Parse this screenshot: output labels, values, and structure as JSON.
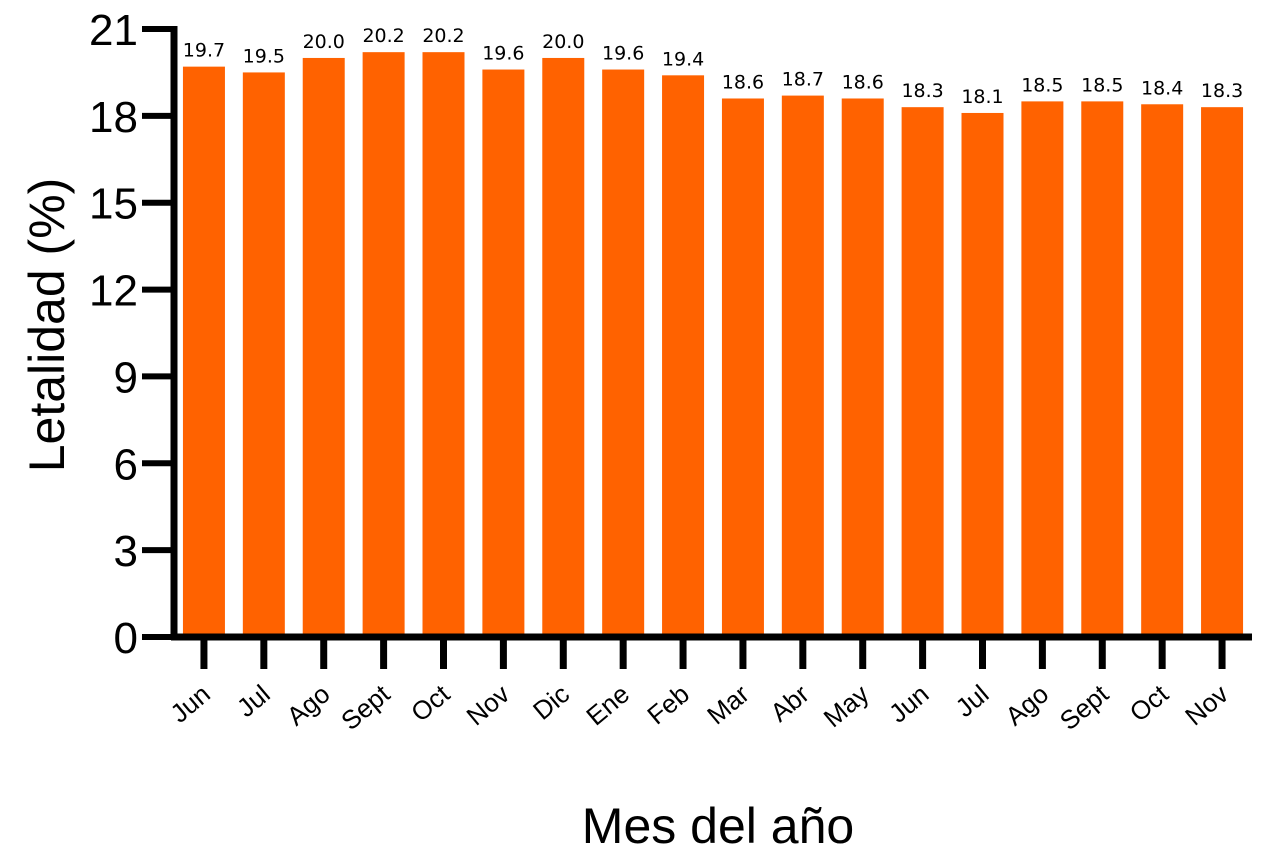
{
  "chart_data": {
    "type": "bar",
    "title": "",
    "xlabel": "Mes del año",
    "ylabel": "Letalidad (%)",
    "ylim": [
      0,
      21
    ],
    "yticks": [
      0,
      3,
      6,
      9,
      12,
      15,
      18,
      21
    ],
    "grid": false,
    "legend": "none",
    "bar_color": "#ff6200",
    "categories": [
      "Jun",
      "Jul",
      "Ago",
      "Sept",
      "Oct",
      "Nov",
      "Dic",
      "Ene",
      "Feb",
      "Mar",
      "Abr",
      "May",
      "Jun",
      "Jul",
      "Ago",
      "Sept",
      "Oct",
      "Nov"
    ],
    "values": [
      19.7,
      19.5,
      20.0,
      20.2,
      20.2,
      19.6,
      20.0,
      19.6,
      19.4,
      18.6,
      18.7,
      18.6,
      18.3,
      18.1,
      18.5,
      18.5,
      18.4,
      18.3
    ],
    "data_labels": [
      "19.7",
      "19.5",
      "20.0",
      "20.2",
      "20.2",
      "19.6",
      "20.0",
      "19.6",
      "19.4",
      "18.6",
      "18.7",
      "18.6",
      "18.3",
      "18.1",
      "18.5",
      "18.5",
      "18.4",
      "18.3"
    ]
  }
}
